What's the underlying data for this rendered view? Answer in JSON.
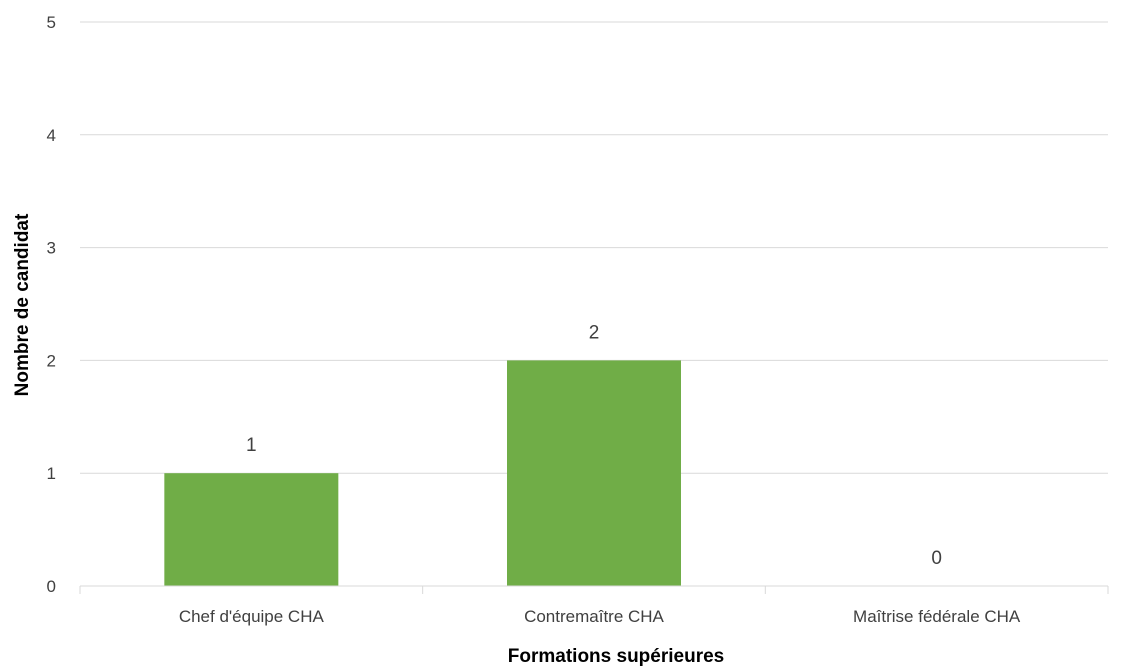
{
  "chart_data": {
    "type": "bar",
    "title": "",
    "xlabel": "Formations supérieures",
    "ylabel": "Nombre de candidat",
    "categories": [
      "Chef d'équipe CHA",
      "Contremaître CHA",
      "Maîtrise fédérale CHA"
    ],
    "values": [
      1,
      2,
      0
    ],
    "data_labels": [
      "1",
      "2",
      "0"
    ],
    "ylim": [
      0,
      5
    ],
    "yticks": [
      "0",
      "1",
      "2",
      "3",
      "4",
      "5"
    ],
    "grid": true,
    "legend": "none",
    "bar_color": "#70AD47",
    "grid_color": "#D9D9D9"
  }
}
